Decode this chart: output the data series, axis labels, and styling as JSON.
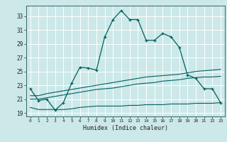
{
  "xlabel": "Humidex (Indice chaleur)",
  "bg_color": "#cce8e8",
  "grid_color": "#ffffff",
  "line_color": "#006060",
  "x": [
    0,
    1,
    2,
    3,
    4,
    5,
    6,
    7,
    8,
    9,
    10,
    11,
    12,
    13,
    14,
    15,
    16,
    17,
    18,
    19,
    20,
    21,
    22,
    23
  ],
  "y_main": [
    22.5,
    20.8,
    21.0,
    19.4,
    20.5,
    23.3,
    25.6,
    25.5,
    25.2,
    30.0,
    32.5,
    33.8,
    32.5,
    32.5,
    29.5,
    29.5,
    30.5,
    30.0,
    28.5,
    24.5,
    24.0,
    22.5,
    22.5,
    20.5
  ],
  "y_upper": [
    21.5,
    21.5,
    21.8,
    22.0,
    22.2,
    22.4,
    22.6,
    22.8,
    23.0,
    23.2,
    23.4,
    23.6,
    23.8,
    24.0,
    24.2,
    24.3,
    24.4,
    24.5,
    24.6,
    24.8,
    25.0,
    25.1,
    25.2,
    25.3
  ],
  "y_mid": [
    21.0,
    21.0,
    21.2,
    21.4,
    21.6,
    21.8,
    22.0,
    22.2,
    22.4,
    22.5,
    22.6,
    22.8,
    23.0,
    23.2,
    23.3,
    23.4,
    23.6,
    23.7,
    23.8,
    24.0,
    24.1,
    24.2,
    24.2,
    24.3
  ],
  "y_lower": [
    19.8,
    19.5,
    19.5,
    19.5,
    19.5,
    19.6,
    19.8,
    19.9,
    20.0,
    20.0,
    20.0,
    20.0,
    20.1,
    20.1,
    20.2,
    20.2,
    20.2,
    20.3,
    20.3,
    20.3,
    20.4,
    20.4,
    20.4,
    20.5
  ],
  "ylim": [
    18.5,
    34.5
  ],
  "yticks": [
    19,
    21,
    23,
    25,
    27,
    29,
    31,
    33
  ],
  "xlim": [
    -0.5,
    23.5
  ],
  "xticks": [
    0,
    1,
    2,
    3,
    4,
    5,
    6,
    7,
    8,
    9,
    10,
    11,
    12,
    13,
    14,
    15,
    16,
    17,
    18,
    19,
    20,
    21,
    22,
    23
  ]
}
